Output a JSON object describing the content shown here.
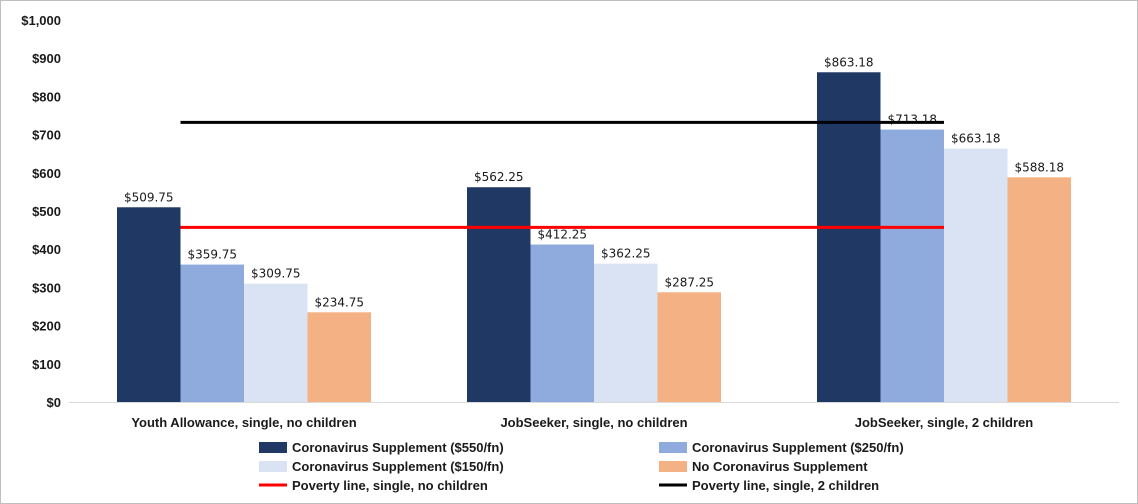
{
  "chart_data": {
    "type": "bar",
    "categories": [
      "Youth Allowance, single, no children",
      "JobSeeker, single, no children",
      "JobSeeker, single, 2 children"
    ],
    "series": [
      {
        "name": "Coronavirus Supplement ($550/fn)",
        "color": "#203864",
        "values": [
          509.75,
          562.25,
          863.18
        ],
        "labels": [
          "$509.75",
          "$562.25",
          "$863.18"
        ]
      },
      {
        "name": "Coronavirus Supplement ($250/fn)",
        "color": "#8faadc",
        "values": [
          359.75,
          412.25,
          713.18
        ],
        "labels": [
          "$359.75",
          "$412.25",
          "$713.18"
        ]
      },
      {
        "name": "Coronavirus Supplement ($150/fn)",
        "color": "#dae3f3",
        "values": [
          309.75,
          362.25,
          663.18
        ],
        "labels": [
          "$309.75",
          "$362.25",
          "$663.18"
        ]
      },
      {
        "name": "No Coronavirus Supplement",
        "color": "#f4b183",
        "values": [
          234.75,
          287.25,
          588.18
        ],
        "labels": [
          "$234.75",
          "$287.25",
          "$588.18"
        ]
      }
    ],
    "reference_lines": [
      {
        "name": "Poverty line, single, no children",
        "color": "#ff0000",
        "value": 457
      },
      {
        "name": "Poverty line, single, 2 children",
        "color": "#000000",
        "value": 732
      }
    ],
    "ylim": [
      0,
      1000
    ],
    "yticks": [
      0,
      100,
      200,
      300,
      400,
      500,
      600,
      700,
      800,
      900,
      1000
    ],
    "ytick_labels": [
      "$0",
      "$100",
      "$200",
      "$300",
      "$400",
      "$500",
      "$600",
      "$700",
      "$800",
      "$900",
      "$1,000"
    ],
    "grid": false,
    "legend_position": "bottom"
  }
}
